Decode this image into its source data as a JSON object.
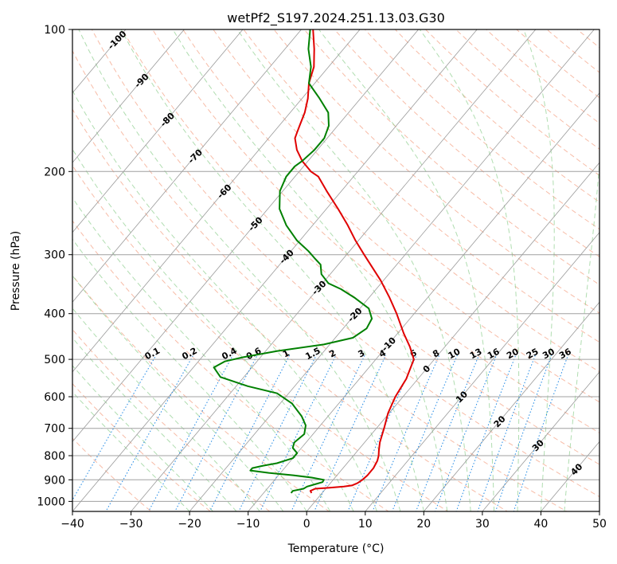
{
  "chart_data": {
    "type": "skew-t",
    "title": "wetPf2_S197.2024.251.13.03.G30",
    "xlabel": "Temperature (°C)",
    "ylabel": "Pressure (hPa)",
    "xlim": [
      -40,
      50
    ],
    "ylim": [
      1050,
      100
    ],
    "y_scale": "log",
    "grid": true,
    "x_ticks": [
      -40,
      -30,
      -20,
      -10,
      0,
      10,
      20,
      30,
      40,
      50
    ],
    "y_ticks": [
      100,
      200,
      300,
      400,
      500,
      600,
      700,
      800,
      900,
      1000
    ],
    "mixing_ratio_labels": [
      "0.1",
      "0.2",
      "0.4",
      "0.6",
      "1",
      "1.5",
      "2",
      "3",
      "4",
      "6",
      "8",
      "10",
      "13",
      "16",
      "20",
      "25",
      "30",
      "36"
    ],
    "isotherm_labels": [
      "-100",
      "-90",
      "-80",
      "-70",
      "-60",
      "-50",
      "-40",
      "-30",
      "-20",
      "-10",
      "0",
      "10",
      "20",
      "30",
      "40"
    ],
    "series": [
      {
        "color": "#e00000",
        "pressure": [
          960,
          950,
          940,
          935,
          930,
          925,
          915,
          900,
          880,
          850,
          820,
          800,
          780,
          750,
          700,
          650,
          600,
          550,
          500,
          470,
          440,
          400,
          370,
          340,
          300,
          280,
          260,
          240,
          220,
          205,
          200,
          190,
          180,
          170,
          165,
          160,
          150,
          140,
          130,
          120,
          110,
          100
        ],
        "values": [
          -1.8,
          -2.3,
          -1.8,
          0.5,
          2.8,
          4.0,
          4.6,
          5.0,
          5.2,
          5.2,
          4.8,
          4.3,
          3.6,
          2.6,
          1.3,
          -0.2,
          -1.3,
          -2.0,
          -3.5,
          -6.0,
          -9.0,
          -13.0,
          -16.5,
          -20.5,
          -27.0,
          -30.5,
          -34.0,
          -38.0,
          -42.5,
          -46.0,
          -48.0,
          -51.0,
          -53.5,
          -55.5,
          -56.0,
          -56.5,
          -57.5,
          -59.0,
          -61.0,
          -62.5,
          -65.0,
          -68.0
        ]
      },
      {
        "color": "#008000",
        "pressure": [
          960,
          950,
          940,
          930,
          920,
          910,
          900,
          890,
          880,
          870,
          860,
          850,
          840,
          830,
          810,
          790,
          770,
          750,
          720,
          690,
          660,
          620,
          590,
          570,
          545,
          520,
          505,
          495,
          480,
          465,
          450,
          430,
          410,
          390,
          370,
          355,
          345,
          330,
          315,
          305,
          295,
          280,
          260,
          240,
          220,
          205,
          200,
          195,
          190,
          180,
          170,
          160,
          150,
          140,
          130,
          120,
          110,
          100
        ],
        "values": [
          -5.3,
          -5.3,
          -3.8,
          -3.5,
          -2.5,
          -1.5,
          -1.6,
          -4.0,
          -7.5,
          -12.0,
          -15.5,
          -15.5,
          -14.0,
          -12.0,
          -10.0,
          -10.0,
          -11.5,
          -12.0,
          -11.5,
          -12.5,
          -14.5,
          -18.0,
          -22.0,
          -28.0,
          -34.0,
          -36.5,
          -35.5,
          -33.0,
          -28.0,
          -21.0,
          -17.0,
          -16.0,
          -16.5,
          -18.5,
          -22.5,
          -26.0,
          -29.0,
          -31.5,
          -33.0,
          -35.0,
          -37.0,
          -40.5,
          -44.5,
          -48.0,
          -50.5,
          -51.5,
          -51.5,
          -51.5,
          -51.0,
          -50.5,
          -50.5,
          -51.5,
          -53.5,
          -57.0,
          -61.0,
          -63.0,
          -66.0,
          -68.5
        ]
      }
    ]
  }
}
